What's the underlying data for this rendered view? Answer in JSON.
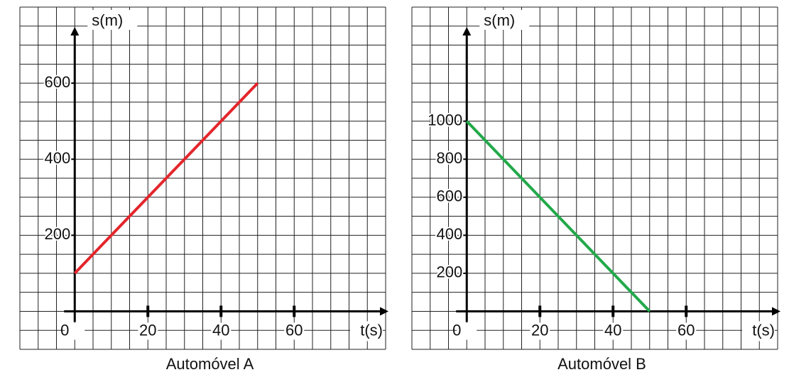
{
  "chart_data": [
    {
      "type": "line",
      "title": "Automóvel A",
      "xlabel": "t(s)",
      "ylabel": "s(m)",
      "x": [
        0,
        50
      ],
      "series": [
        {
          "name": "Automóvel A",
          "color": "#e3262c",
          "values": [
            100,
            600
          ]
        }
      ],
      "xlim": [
        -15,
        85
      ],
      "ylim": [
        -100,
        800
      ],
      "xticks": [
        0,
        20,
        40,
        60
      ],
      "yticks": [
        200,
        400,
        600
      ],
      "grid": true
    },
    {
      "type": "line",
      "title": "Automóvel B",
      "xlabel": "t(s)",
      "ylabel": "s(m)",
      "x": [
        0,
        50
      ],
      "series": [
        {
          "name": "Automóvel B",
          "color": "#22a94a",
          "values": [
            1000,
            0
          ]
        }
      ],
      "xlim": [
        -15,
        85
      ],
      "ylim": [
        -200,
        1600
      ],
      "xticks": [
        0,
        20,
        40,
        60
      ],
      "yticks": [
        200,
        400,
        600,
        800,
        1000
      ],
      "grid": true
    }
  ]
}
